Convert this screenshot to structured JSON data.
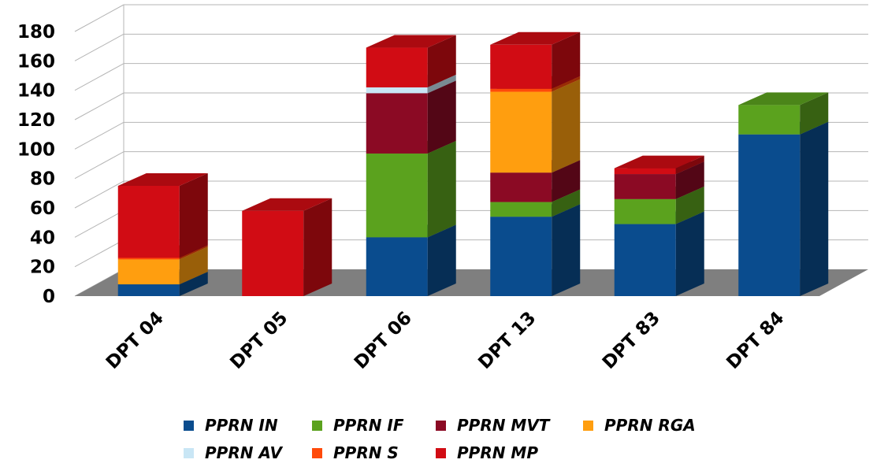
{
  "chart_data": {
    "type": "bar",
    "stacked": true,
    "three_d": true,
    "categories": [
      "DPT 04",
      "DPT 05",
      "DPT 06",
      "DPT 13",
      "DPT 83",
      "DPT 84"
    ],
    "ylim": [
      0,
      180
    ],
    "yticks": [
      0,
      20,
      40,
      60,
      80,
      100,
      120,
      140,
      160,
      180
    ],
    "grid": true,
    "legend_position": "bottom",
    "series": [
      {
        "name": "PPRN IN",
        "color": "#0A4C8E",
        "values": [
          8,
          0,
          40,
          54,
          49,
          110
        ]
      },
      {
        "name": "PPRN IF",
        "color": "#5BA21E",
        "values": [
          0,
          0,
          57,
          10,
          17,
          20
        ]
      },
      {
        "name": "PPRN MVT",
        "color": "#8B0A24",
        "values": [
          0,
          0,
          41,
          20,
          17,
          0
        ]
      },
      {
        "name": "PPRN RGA",
        "color": "#FF9E0F",
        "values": [
          17,
          0,
          0,
          55,
          0,
          0
        ]
      },
      {
        "name": "PPRN AV",
        "color": "#C9E6F5",
        "values": [
          0,
          0,
          4,
          0,
          0,
          0
        ]
      },
      {
        "name": "PPRN S",
        "color": "#FF4A0A",
        "values": [
          1,
          0,
          0,
          2,
          0,
          0
        ]
      },
      {
        "name": "PPRN MP",
        "color": "#D10C14",
        "values": [
          49,
          58,
          27,
          30,
          4,
          0
        ]
      }
    ]
  }
}
